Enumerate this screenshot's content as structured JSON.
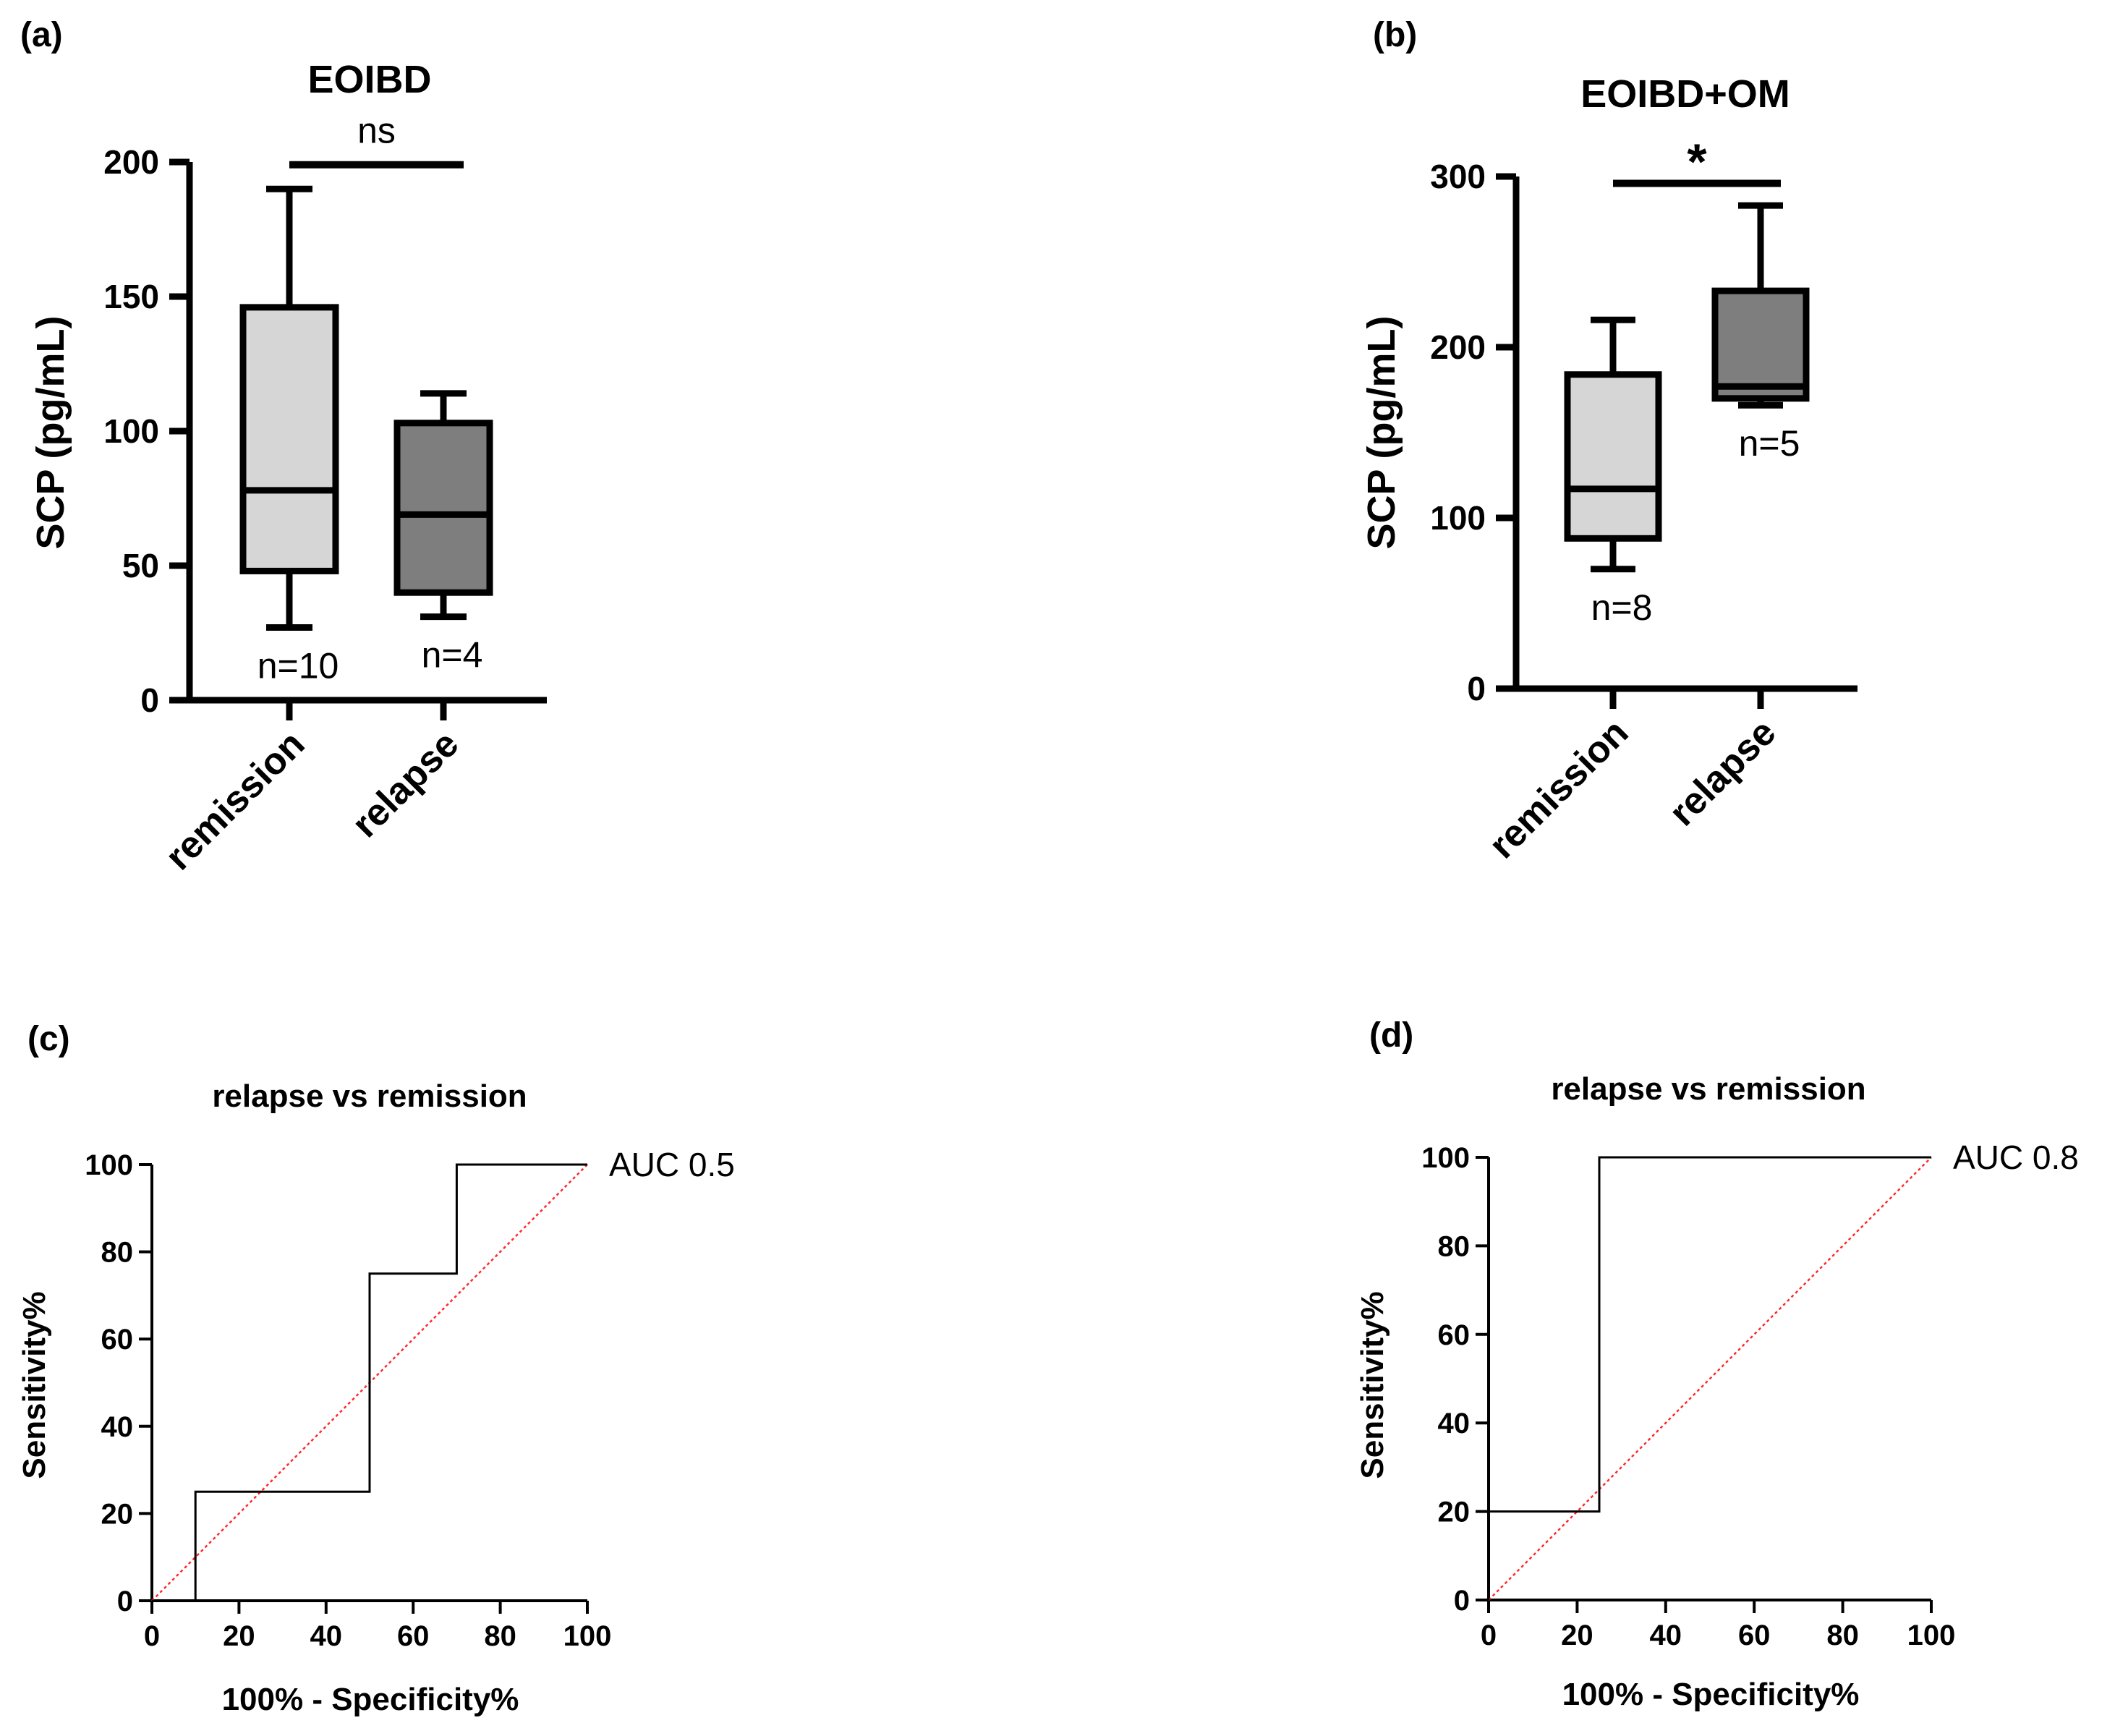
{
  "chart_data": [
    {
      "panel": "(a)",
      "type": "box",
      "title": "EOIBD",
      "ylabel": "SCP (pg/mL)",
      "ylim": [
        0,
        200
      ],
      "yticks": [
        0,
        50,
        100,
        150,
        200
      ],
      "categories": [
        "remission",
        "relapse"
      ],
      "boxes": [
        {
          "min": 27,
          "q1": 48,
          "median": 78,
          "q3": 146,
          "max": 190,
          "fill": "#d6d6d6",
          "n_label": "n=10"
        },
        {
          "min": 31,
          "q1": 40,
          "median": 69,
          "q3": 103,
          "max": 114,
          "fill": "#7e7e7e",
          "n_label": "n=4"
        }
      ],
      "significance": {
        "label": "ns",
        "y": 199
      }
    },
    {
      "panel": "(b)",
      "type": "box",
      "title": "EOIBD+OM",
      "ylabel": "SCP (pg/mL)",
      "ylim": [
        0,
        300
      ],
      "yticks": [
        0,
        100,
        200,
        300
      ],
      "categories": [
        "remission",
        "relapse"
      ],
      "boxes": [
        {
          "min": 70,
          "q1": 88,
          "median": 117,
          "q3": 184,
          "max": 216,
          "fill": "#d6d6d6",
          "n_label": "n=8"
        },
        {
          "min": 166,
          "q1": 170,
          "median": 177,
          "q3": 233,
          "max": 283,
          "fill": "#7e7e7e",
          "n_label": "n=5"
        }
      ],
      "significance": {
        "label": "*",
        "y": 296
      }
    },
    {
      "panel": "(c)",
      "type": "line",
      "title": "relapse vs remission",
      "xlabel": "100% - Specificity%",
      "ylabel": "Sensitivity%",
      "xlim": [
        0,
        100
      ],
      "ylim": [
        0,
        100
      ],
      "xticks": [
        0,
        20,
        40,
        60,
        80,
        100
      ],
      "yticks": [
        0,
        20,
        40,
        60,
        80,
        100
      ],
      "roc": {
        "x": [
          0,
          10,
          10,
          50,
          50,
          70,
          70,
          100
        ],
        "y": [
          0,
          0,
          25,
          25,
          75,
          75,
          100,
          100
        ]
      },
      "reference_line_color": "#ff2a2a",
      "annotation": "AUC 0.5"
    },
    {
      "panel": "(d)",
      "type": "line",
      "title": "relapse vs remission",
      "xlabel": "100% - Specificity%",
      "ylabel": "Sensitivity%",
      "xlim": [
        0,
        100
      ],
      "ylim": [
        0,
        100
      ],
      "xticks": [
        0,
        20,
        40,
        60,
        80,
        100
      ],
      "yticks": [
        0,
        20,
        40,
        60,
        80,
        100
      ],
      "roc": {
        "x": [
          0,
          0,
          25,
          25,
          100
        ],
        "y": [
          0,
          20,
          20,
          100,
          100
        ]
      },
      "reference_line_color": "#ff2a2a",
      "annotation": "AUC 0.8"
    }
  ]
}
